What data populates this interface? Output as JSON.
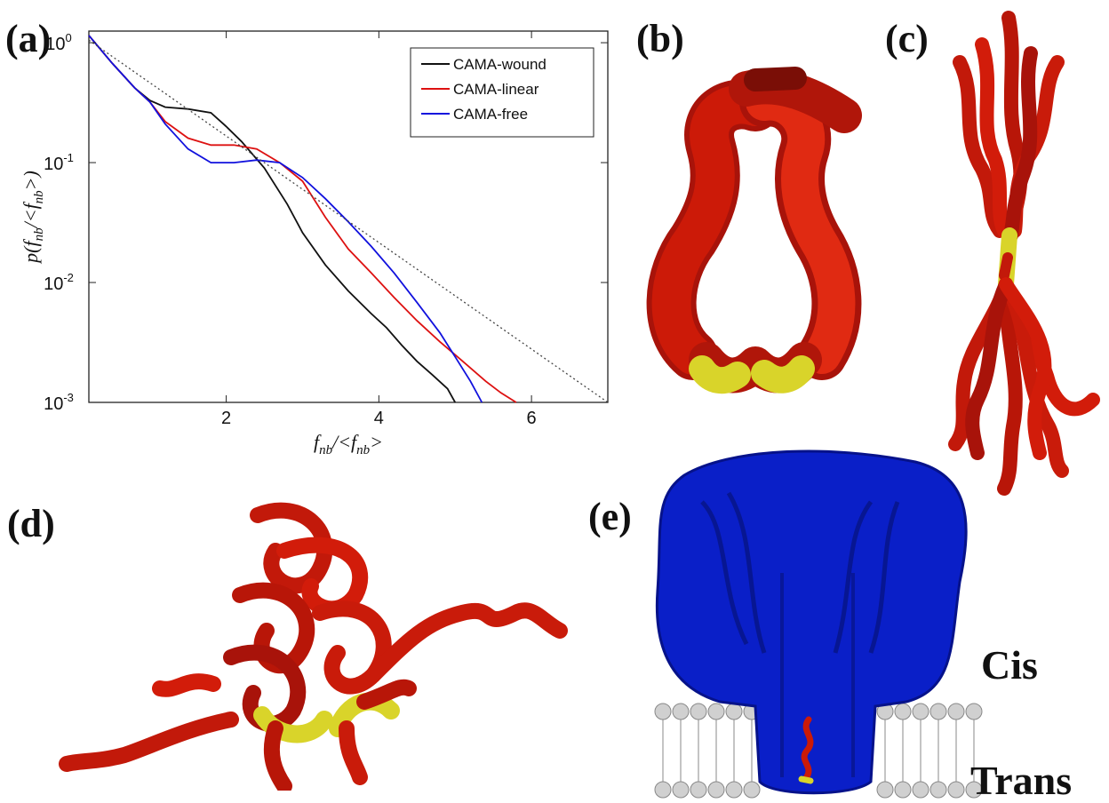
{
  "panels": {
    "a": "(a)",
    "b": "(b)",
    "c": "(c)",
    "d": "(d)",
    "e": "(e)"
  },
  "labels": {
    "cis": "Cis",
    "trans": "Trans"
  },
  "colors": {
    "tube_red": "#cc1a08",
    "tube_yellow": "#d9d42a",
    "pore_blue": "#0a1fc8",
    "lipid": "#c8c8c8"
  },
  "chart_data": {
    "type": "line",
    "xlabel": "f_nb/<f_nb>",
    "ylabel": "p(f_nb/<f_nb>)",
    "xlim": [
      0.2,
      7.0
    ],
    "ylim": [
      0.001,
      1.25
    ],
    "yscale": "log",
    "xticks": [
      2,
      4,
      6
    ],
    "yticks": [
      {
        "v": 1,
        "base": "10",
        "exp": "0"
      },
      {
        "v": 0.1,
        "base": "10",
        "exp": "-1"
      },
      {
        "v": 0.01,
        "base": "10",
        "exp": "-2"
      },
      {
        "v": 0.001,
        "base": "10",
        "exp": "-3"
      }
    ],
    "legend_position": "top-right",
    "series": [
      {
        "name": "CAMA-wound",
        "color": "#111111",
        "x": [
          0.2,
          0.5,
          0.8,
          1.0,
          1.2,
          1.5,
          1.8,
          2.0,
          2.2,
          2.5,
          2.8,
          3.0,
          3.3,
          3.6,
          3.9,
          4.1,
          4.3,
          4.5,
          4.7,
          4.9,
          5.0
        ],
        "y": [
          1.15,
          0.68,
          0.42,
          0.33,
          0.29,
          0.28,
          0.26,
          0.2,
          0.15,
          0.09,
          0.045,
          0.026,
          0.014,
          0.0085,
          0.0055,
          0.0042,
          0.003,
          0.0022,
          0.0017,
          0.0013,
          0.001
        ]
      },
      {
        "name": "CAMA-linear",
        "color": "#dd1111",
        "x": [
          0.2,
          0.5,
          0.8,
          1.0,
          1.2,
          1.5,
          1.8,
          2.1,
          2.4,
          2.7,
          3.0,
          3.3,
          3.6,
          3.9,
          4.2,
          4.5,
          4.8,
          5.1,
          5.4,
          5.6,
          5.8
        ],
        "y": [
          1.15,
          0.68,
          0.42,
          0.32,
          0.22,
          0.16,
          0.14,
          0.14,
          0.13,
          0.1,
          0.07,
          0.035,
          0.019,
          0.012,
          0.0075,
          0.0048,
          0.0032,
          0.0022,
          0.0015,
          0.0012,
          0.001
        ]
      },
      {
        "name": "CAMA-free",
        "color": "#1111dd",
        "x": [
          0.2,
          0.5,
          0.8,
          1.0,
          1.2,
          1.5,
          1.8,
          2.1,
          2.4,
          2.7,
          3.0,
          3.3,
          3.6,
          3.9,
          4.2,
          4.5,
          4.8,
          5.0,
          5.2,
          5.35
        ],
        "y": [
          1.15,
          0.68,
          0.42,
          0.32,
          0.21,
          0.13,
          0.1,
          0.1,
          0.105,
          0.1,
          0.075,
          0.05,
          0.032,
          0.02,
          0.012,
          0.0068,
          0.0038,
          0.0024,
          0.0015,
          0.001
        ]
      },
      {
        "name": "",
        "color": "#444444",
        "dash": true,
        "x": [
          0.2,
          7.0
        ],
        "y": [
          1.05,
          0.001
        ]
      }
    ]
  }
}
